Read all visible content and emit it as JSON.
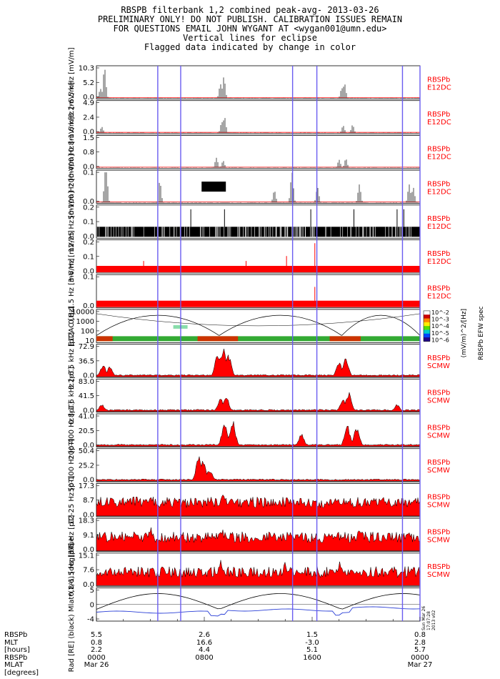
{
  "header": {
    "line1": "RBSPB filterbank 1,2 combined peak-avg- 2013-03-26",
    "line2": "PRELIMINARY ONLY! DO NOT PUBLISH. CALIBRATION ISSUES REMAIN",
    "line3": "FOR QUESTIONS EMAIL JOHN WYGANT AT <wygan001@umn.edu>",
    "line4": "Vertical lines for eclipse",
    "line5": "Flagged data indicated by change in color"
  },
  "colors": {
    "eclipse": "#6a5cf0",
    "flag": "#ff0000",
    "data": "#000000",
    "ephem": "#2a3fd6"
  },
  "chart_data": {
    "type": "line",
    "x_range_hours": [
      0,
      24
    ],
    "eclipse_lines_hours": [
      4.55,
      6.25,
      14.55,
      16.35,
      22.7,
      24.0
    ],
    "panels": [
      {
        "ylabel": "3.2-6.5 kHz [mV/m]",
        "yticks": [
          "10.3",
          "5.2",
          "0.0"
        ],
        "tag1": "RBSPb",
        "tag2": "E12DC",
        "peaks": [
          [
            9.2,
            4.8
          ],
          [
            9.45,
            7.2
          ],
          [
            18.2,
            3.5
          ],
          [
            18.4,
            5.0
          ],
          [
            0.3,
            3.2
          ],
          [
            0.6,
            10.3
          ]
        ]
      },
      {
        "ylabel": "0.8-1.6 kHz [mV/m]",
        "yticks": [
          "4.9",
          "2.4",
          "0.0"
        ],
        "tag1": "RBSPb",
        "tag2": "E12DC",
        "peaks": [
          [
            9.3,
            1.8
          ],
          [
            9.5,
            2.6
          ],
          [
            18.3,
            1.2
          ],
          [
            19.0,
            1.3
          ],
          [
            0.4,
            1.0
          ]
        ]
      },
      {
        "ylabel": "200-400 Hz [mV/m]",
        "yticks": [
          "1.5",
          "0.8",
          "0.0"
        ],
        "tag1": "RBSPb",
        "tag2": "E12DC",
        "peaks": [
          [
            8.9,
            0.5
          ],
          [
            9.4,
            0.35
          ],
          [
            18.0,
            0.4
          ],
          [
            18.5,
            0.45
          ]
        ]
      },
      {
        "ylabel": "50-100 Hz [mV/m]",
        "yticks": [
          "0.1",
          "0.0"
        ],
        "tag1": "RBSPb",
        "tag2": "E12DC",
        "peaks": [
          [
            0.7,
            0.16
          ],
          [
            4.7,
            0.07
          ],
          [
            13.2,
            0.04
          ],
          [
            14.5,
            0.1
          ],
          [
            16.4,
            0.05
          ],
          [
            19.5,
            0.06
          ],
          [
            23.2,
            0.06
          ],
          [
            23.5,
            0.05
          ]
        ]
      },
      {
        "ylabel": "12-25 Hz [mV/m]",
        "yticks": [
          "0.2",
          "0.1",
          "0.0"
        ],
        "tag1": "RBSPb",
        "tag2": "E12DC",
        "peaks": [
          [
            7.0,
            0.15
          ],
          [
            9.5,
            0.1
          ],
          [
            15.9,
            0.15
          ],
          [
            19.1,
            0.15
          ],
          [
            22.3,
            0.15
          ],
          [
            22.8,
            0.15
          ]
        ]
      },
      {
        "ylabel": "3-6 Hz [mV/m]",
        "yticks": [
          "0.2",
          "0.1",
          "0.0"
        ],
        "tag1": "RBSPb",
        "tag2": "E12DC",
        "peaks": [
          [
            16.2,
            0.23
          ],
          [
            14.1,
            0.1
          ],
          [
            11.1,
            0.05
          ],
          [
            3.5,
            0.05
          ]
        ]
      },
      {
        "ylabel": "0.8-1.5 Hz [mV/m]",
        "yticks": [
          "0.1",
          "0.0"
        ],
        "tag1": "RBSPb",
        "tag2": "E12DC",
        "peaks": [
          [
            16.2,
            0.14
          ],
          [
            22.7,
            0.06
          ]
        ]
      },
      {
        "ylabel": "E12AC [Hz]",
        "yticks": [
          "10000",
          "1000",
          "100",
          "10"
        ],
        "tag1": "",
        "tag2": "",
        "peaks": []
      },
      {
        "ylabel": "3.2-6.5 kHz [pT]",
        "yticks": [
          "72.9",
          "36.5",
          "0.0"
        ],
        "tag1": "RBSPb",
        "tag2": "SCMW",
        "peaks": [
          [
            0.5,
            30
          ],
          [
            1.0,
            25
          ],
          [
            9.0,
            60
          ],
          [
            9.4,
            72
          ],
          [
            9.8,
            55
          ],
          [
            18.0,
            40
          ],
          [
            18.5,
            50
          ]
        ]
      },
      {
        "ylabel": "0.8-1.6 kHz [pT]",
        "yticks": [
          "83.0",
          "41.5",
          "0.0"
        ],
        "tag1": "RBSPb",
        "tag2": "SCMW",
        "peaks": [
          [
            0.4,
            20
          ],
          [
            9.2,
            40
          ],
          [
            9.6,
            50
          ],
          [
            18.3,
            38
          ],
          [
            18.7,
            55
          ],
          [
            22.3,
            20
          ]
        ]
      },
      {
        "ylabel": "200-400 Hz [pT]",
        "yticks": [
          "41.0",
          "20.5",
          "0.0"
        ],
        "tag1": "RBSPb",
        "tag2": "SCMW",
        "peaks": [
          [
            9.5,
            35
          ],
          [
            10.1,
            38
          ],
          [
            18.6,
            30
          ],
          [
            19.3,
            28
          ],
          [
            15.2,
            18
          ]
        ]
      },
      {
        "ylabel": "50-100 Hz [pT]",
        "yticks": [
          "50.4",
          "25.2",
          "0.0"
        ],
        "tag1": "RBSPb",
        "tag2": "SCMW",
        "peaks": [
          [
            7.6,
            45
          ],
          [
            7.9,
            40
          ],
          [
            8.4,
            20
          ]
        ]
      },
      {
        "ylabel": "12-25 Hz [pT]",
        "yticks": [
          "17.3",
          "8.7",
          "0.0"
        ],
        "tag1": "RBSPb",
        "tag2": "SCMW",
        "peaks": [
          [
            9.4,
            16
          ],
          [
            9.9,
            10
          ],
          [
            0.3,
            8
          ]
        ]
      },
      {
        "ylabel": "3-6 Hz [pT]",
        "yticks": [
          "18.3",
          "9.1",
          "0.0"
        ],
        "tag1": "RBSPb",
        "tag2": "SCMW",
        "peaks": [
          [
            4.0,
            15
          ],
          [
            9.3,
            14
          ],
          [
            19.5,
            14
          ]
        ]
      },
      {
        "ylabel": "0.8-1.5 Hz [pT]",
        "yticks": [
          "15.1",
          "7.6",
          "0.0"
        ],
        "tag1": "RBSPb",
        "tag2": "SCMW",
        "peaks": [
          [
            9.2,
            14
          ],
          [
            18.1,
            13
          ],
          [
            14.0,
            12
          ]
        ]
      },
      {
        "ylabel": "Rad [RE] (black) Mlat*(1/6) [deg] blue",
        "yticks": [
          "5",
          "0",
          "-4"
        ],
        "tag1": "",
        "tag2": "",
        "peaks": []
      }
    ],
    "spec_colorbar": {
      "ticks": [
        "10^-2",
        "10^-3",
        "10^-4",
        "10^-5",
        "10^-6"
      ],
      "label": "(mV/m)^2/[Hz]",
      "label2": "RBSPb EFW spec"
    }
  },
  "footer": {
    "labels": [
      "RBSPb",
      "MLT",
      "[hours]",
      "RBSPb",
      "MLAT",
      "[degrees]"
    ],
    "columns": [
      {
        "hour": 0,
        "vals": [
          "5.5",
          "0.8",
          "2.2",
          "0000",
          "Mar 26"
        ]
      },
      {
        "hour": 8,
        "vals": [
          "2.6",
          "16.6",
          "4.4",
          "0800",
          ""
        ]
      },
      {
        "hour": 16,
        "vals": [
          "1.5",
          "-3.0",
          "5.1",
          "1600",
          ""
        ]
      },
      {
        "hour": 24,
        "vals": [
          "0.8",
          "2.8",
          "5.7",
          "0000",
          "Mar 27"
        ]
      }
    ]
  },
  "stamp": "Sun Mar 26 17:07:28 2013 v02"
}
